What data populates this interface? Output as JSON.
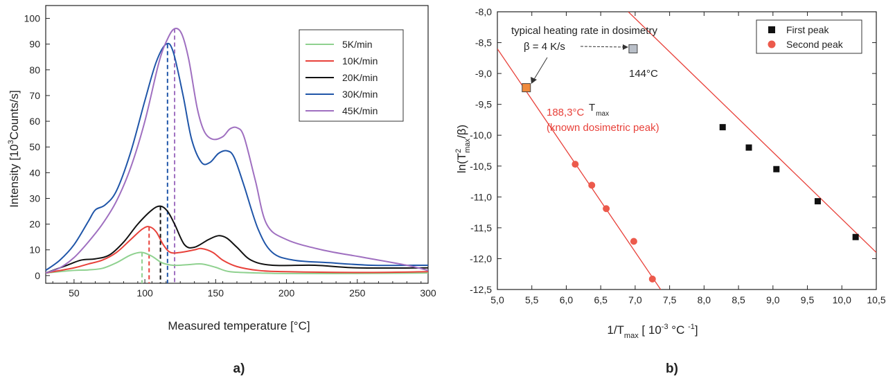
{
  "chart_data": [
    {
      "panel_label": "a)",
      "type": "line",
      "xlabel": "Measured temperature [°C]",
      "ylabel": "Intensity [10³Counts/s]",
      "ylabel_parts": {
        "pre": "Intensity [10",
        "sup": "3",
        "post": "Counts/s]"
      },
      "xlim": [
        30,
        300
      ],
      "ylim": [
        -3,
        105
      ],
      "xticks": [
        50,
        100,
        150,
        200,
        250,
        300
      ],
      "yticks": [
        0,
        10,
        20,
        30,
        40,
        50,
        60,
        70,
        80,
        90,
        100
      ],
      "legend_position": "top-right",
      "series": [
        {
          "name": "5K/min",
          "color": "#8fd18f",
          "points": [
            [
              30,
              1
            ],
            [
              50,
              2
            ],
            [
              60,
              2.2
            ],
            [
              70,
              2.8
            ],
            [
              80,
              5
            ],
            [
              90,
              8
            ],
            [
              98,
              9
            ],
            [
              105,
              7.5
            ],
            [
              112,
              5
            ],
            [
              120,
              4
            ],
            [
              130,
              4.2
            ],
            [
              140,
              4.5
            ],
            [
              150,
              3.2
            ],
            [
              160,
              1.5
            ],
            [
              180,
              1
            ],
            [
              200,
              0.8
            ],
            [
              250,
              0.8
            ],
            [
              300,
              1
            ]
          ]
        },
        {
          "name": "10K/min",
          "color": "#e8413a",
          "points": [
            [
              30,
              1
            ],
            [
              50,
              3
            ],
            [
              60,
              4.5
            ],
            [
              70,
              6
            ],
            [
              80,
              9
            ],
            [
              90,
              14
            ],
            [
              98,
              18
            ],
            [
              103,
              19
            ],
            [
              108,
              17
            ],
            [
              113,
              12
            ],
            [
              118,
              9
            ],
            [
              125,
              9
            ],
            [
              135,
              10
            ],
            [
              140,
              10.5
            ],
            [
              148,
              9
            ],
            [
              155,
              6
            ],
            [
              165,
              3.5
            ],
            [
              180,
              2
            ],
            [
              200,
              1.5
            ],
            [
              250,
              1.2
            ],
            [
              300,
              1.5
            ]
          ]
        },
        {
          "name": "20K/min",
          "color": "#111111",
          "points": [
            [
              30,
              1
            ],
            [
              45,
              4
            ],
            [
              55,
              6
            ],
            [
              65,
              6.5
            ],
            [
              75,
              8
            ],
            [
              85,
              13
            ],
            [
              95,
              20
            ],
            [
              105,
              25.5
            ],
            [
              111,
              27
            ],
            [
              116,
              25
            ],
            [
              121,
              20
            ],
            [
              128,
              12
            ],
            [
              135,
              11
            ],
            [
              145,
              14
            ],
            [
              152,
              15.5
            ],
            [
              158,
              14.5
            ],
            [
              165,
              11
            ],
            [
              175,
              6
            ],
            [
              190,
              4
            ],
            [
              220,
              4
            ],
            [
              250,
              3
            ],
            [
              300,
              3
            ]
          ]
        },
        {
          "name": "30K/min",
          "color": "#1f55a8",
          "points": [
            [
              30,
              2
            ],
            [
              40,
              6
            ],
            [
              50,
              12
            ],
            [
              60,
              21
            ],
            [
              65,
              25.5
            ],
            [
              72,
              27.5
            ],
            [
              80,
              33
            ],
            [
              90,
              48
            ],
            [
              100,
              68
            ],
            [
              108,
              83
            ],
            [
              115,
              90
            ],
            [
              120,
              87
            ],
            [
              127,
              70
            ],
            [
              133,
              53
            ],
            [
              140,
              44
            ],
            [
              146,
              44
            ],
            [
              152,
              47.5
            ],
            [
              158,
              48.5
            ],
            [
              163,
              46
            ],
            [
              170,
              35
            ],
            [
              180,
              18
            ],
            [
              190,
              9
            ],
            [
              205,
              6
            ],
            [
              230,
              5
            ],
            [
              260,
              4
            ],
            [
              290,
              4
            ],
            [
              300,
              4
            ]
          ]
        },
        {
          "name": "45K/min",
          "color": "#9f6fc0",
          "points": [
            [
              30,
              1
            ],
            [
              40,
              3
            ],
            [
              50,
              7
            ],
            [
              60,
              13
            ],
            [
              70,
              20
            ],
            [
              80,
              29
            ],
            [
              90,
              42
            ],
            [
              100,
              60
            ],
            [
              110,
              83
            ],
            [
              116,
              92
            ],
            [
              121,
              96
            ],
            [
              126,
              94
            ],
            [
              131,
              84
            ],
            [
              137,
              65
            ],
            [
              142,
              56
            ],
            [
              148,
              53
            ],
            [
              155,
              54
            ],
            [
              160,
              57
            ],
            [
              165,
              57.5
            ],
            [
              170,
              54
            ],
            [
              178,
              37
            ],
            [
              186,
              20
            ],
            [
              200,
              14
            ],
            [
              225,
              10
            ],
            [
              255,
              7
            ],
            [
              285,
              4
            ],
            [
              300,
              2
            ]
          ]
        }
      ],
      "peak_markers": [
        {
          "x": 98,
          "ymax": 9,
          "color": "#8fd18f"
        },
        {
          "x": 103,
          "ymax": 19,
          "color": "#e8413a"
        },
        {
          "x": 111,
          "ymax": 27,
          "color": "#111111"
        },
        {
          "x": 116,
          "ymax": 90,
          "color": "#1f55a8"
        },
        {
          "x": 121,
          "ymax": 96,
          "color": "#9f6fc0"
        }
      ]
    },
    {
      "panel_label": "b)",
      "type": "scatter",
      "xlabel_parts": {
        "a": "1/T",
        "b": "max",
        "c": " [ 10",
        "d": "-3",
        "e": " °C ",
        "f": "-1",
        "g": "]"
      },
      "ylabel_parts": {
        "a": "ln(T",
        "b": "2",
        "c": "max",
        "d": "/β)"
      },
      "xlim": [
        5.0,
        10.5
      ],
      "ylim": [
        -12.5,
        -8.0
      ],
      "xticks": [
        "5,0",
        "5,5",
        "6,0",
        "6,5",
        "7,0",
        "7,5",
        "8,0",
        "8,5",
        "9,0",
        "9,5",
        "10,0",
        "10,5"
      ],
      "xtick_values": [
        5.0,
        5.5,
        6.0,
        6.5,
        7.0,
        7.5,
        8.0,
        8.5,
        9.0,
        9.5,
        10.0,
        10.5
      ],
      "yticks": [
        "-8,0",
        "-8,5",
        "-9,0",
        "-9,5",
        "-10,0",
        "-10,5",
        "-11,0",
        "-11,5",
        "-12,0",
        "-12,5"
      ],
      "ytick_values": [
        -8.0,
        -8.5,
        -9.0,
        -9.5,
        -10.0,
        -10.5,
        -11.0,
        -11.5,
        -12.0,
        -12.5
      ],
      "legend_position": "top-right",
      "series": [
        {
          "name": "First peak",
          "marker": "square",
          "color": "#111111",
          "points": [
            [
              8.27,
              -9.87
            ],
            [
              8.65,
              -10.2
            ],
            [
              9.05,
              -10.55
            ],
            [
              9.65,
              -11.07
            ],
            [
              10.2,
              -11.65
            ]
          ],
          "fit_line": [
            [
              6.9,
              -8.0
            ],
            [
              10.5,
              -11.9
            ]
          ]
        },
        {
          "name": "Second peak",
          "marker": "circle",
          "color": "#ec5a4c",
          "points": [
            [
              6.13,
              -10.47
            ],
            [
              6.37,
              -10.81
            ],
            [
              6.58,
              -11.19
            ],
            [
              6.98,
              -11.72
            ],
            [
              7.25,
              -12.33
            ]
          ],
          "fit_line": [
            [
              5.0,
              -8.6
            ],
            [
              7.37,
              -12.5
            ]
          ]
        }
      ],
      "extrapolated_points": [
        {
          "x": 6.97,
          "y": -8.6,
          "fill": "#b9bfc8",
          "stroke": "#444444"
        },
        {
          "x": 5.42,
          "y": -9.23,
          "fill": "#f08a3c",
          "stroke": "#444444"
        }
      ],
      "annotations": {
        "heating_note": "typical heating rate in dosimetry",
        "beta_note": "β = 4 K/s",
        "tmax_main": "T",
        "tmax_sub": "max",
        "temp_first": "144°C",
        "temp_second": "188,3°C",
        "known_peak": "(known dosimetric peak)"
      }
    }
  ]
}
